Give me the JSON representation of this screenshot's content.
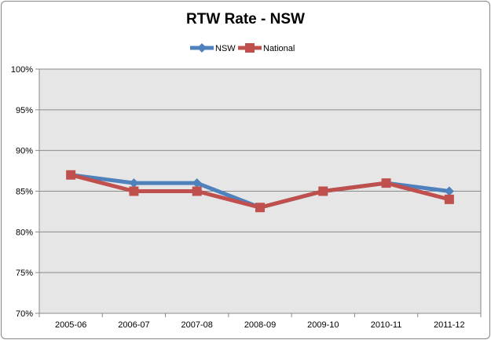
{
  "chart_data": {
    "type": "line",
    "title": "RTW Rate - NSW",
    "xlabel": "",
    "ylabel": "",
    "categories": [
      "2005-06",
      "2006-07",
      "2007-08",
      "2008-09",
      "2009-10",
      "2010-11",
      "2011-12"
    ],
    "ylim": [
      70,
      100
    ],
    "yticks": [
      "70%",
      "75%",
      "80%",
      "85%",
      "90%",
      "95%",
      "100%"
    ],
    "grid": true,
    "legend": "top",
    "series": [
      {
        "name": "NSW",
        "color": "#4f81bd",
        "marker": "diamond",
        "values": [
          87,
          86,
          86,
          83,
          85,
          86,
          85
        ]
      },
      {
        "name": "National",
        "color": "#c0504d",
        "marker": "square",
        "values": [
          87,
          85,
          85,
          83,
          85,
          86,
          84
        ]
      }
    ]
  }
}
